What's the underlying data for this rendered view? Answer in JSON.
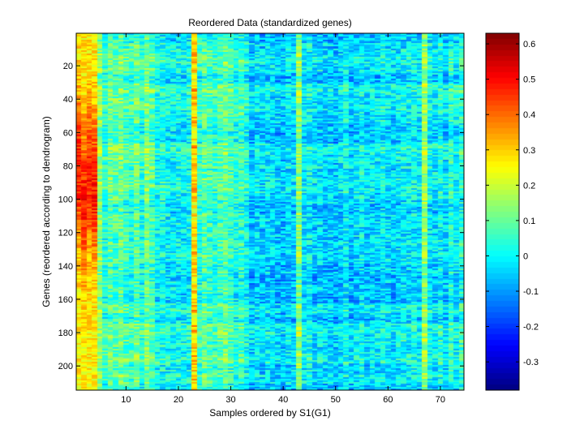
{
  "chart_data": {
    "type": "heatmap",
    "title": "Reordered Data (standardized genes)",
    "xlabel": "Samples ordered by S1(G1)",
    "ylabel": "Genes (reordered according to dendrogram)",
    "n_samples": 74,
    "n_genes": 214,
    "xlim": [
      0.5,
      74.5
    ],
    "ylim": [
      0.5,
      214.5
    ],
    "y_reversed": true,
    "xticks": [
      10,
      20,
      30,
      40,
      50,
      60,
      70
    ],
    "yticks": [
      20,
      40,
      60,
      80,
      100,
      120,
      140,
      160,
      180,
      200
    ],
    "colormap": "jet",
    "colorbar": {
      "min": -0.38,
      "max": 0.63,
      "ticks": [
        "-0.3",
        "-0.2",
        "-0.1",
        "0",
        "0.1",
        "0.2",
        "0.3",
        "0.4",
        "0.5",
        "0.6"
      ],
      "tick_values": [
        -0.3,
        -0.2,
        -0.1,
        0,
        0.1,
        0.2,
        0.3,
        0.4,
        0.5,
        0.6
      ]
    },
    "column_profile": [
      0.33,
      0.34,
      0.33,
      0.35,
      0.14,
      0.05,
      0.1,
      0.08,
      0.11,
      0.07,
      0.05,
      0.1,
      0.04,
      0.12,
      0.08,
      0.01,
      0.02,
      0.0,
      0.0,
      0.01,
      0.0,
      0.01,
      0.29,
      0.05,
      0.09,
      0.06,
      0.05,
      0.08,
      0.1,
      0.06,
      0.03,
      0.06,
      0.02,
      -0.05,
      -0.03,
      -0.04,
      -0.02,
      -0.03,
      -0.05,
      -0.06,
      -0.03,
      -0.04,
      0.14,
      -0.02,
      0.0,
      -0.04,
      -0.03,
      -0.05,
      -0.04,
      -0.06,
      -0.03,
      0.0,
      -0.05,
      -0.03,
      -0.01,
      -0.04,
      -0.02,
      -0.03,
      0.0,
      -0.02,
      -0.04,
      -0.02,
      -0.01,
      -0.01,
      0.0,
      -0.02,
      0.15,
      0.0,
      -0.02,
      0.01,
      -0.03,
      0.04,
      -0.01,
      0.04
    ],
    "hot_rows_col1to4": [
      80,
      100,
      85,
      92
    ],
    "noise_amplitude": 0.09
  }
}
